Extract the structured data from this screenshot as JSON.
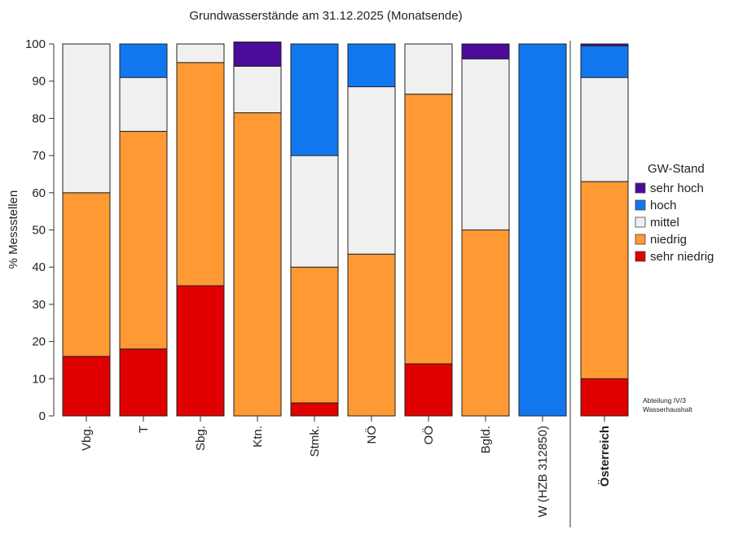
{
  "chart_data": {
    "type": "bar",
    "stacked": true,
    "percent": true,
    "title": "Grundwasserstände am 31.12.2025 (Monatsende)",
    "ylabel": "% Messstellen",
    "xlabel": "",
    "ylim": [
      0,
      100
    ],
    "yticks": [
      0,
      10,
      20,
      30,
      40,
      50,
      60,
      70,
      80,
      90,
      100
    ],
    "grid": false,
    "legend_position": "right",
    "legend_title": "GW-Stand",
    "categories": [
      "Vbg.",
      "T",
      "Sbg.",
      "Ktn.",
      "Stmk.",
      "NÖ",
      "OÖ",
      "Bgld.",
      "W (HZB 312850)",
      "Österreich"
    ],
    "emphasized_category": "Österreich",
    "separator_before": "Österreich",
    "series": [
      {
        "name": "sehr niedrig",
        "color": "#e00000",
        "values": [
          16,
          18,
          35,
          0,
          3.5,
          0,
          14,
          0,
          0,
          10
        ]
      },
      {
        "name": "niedrig",
        "color": "#ff9933",
        "values": [
          44,
          58.5,
          60,
          81.5,
          36.5,
          43.5,
          72.5,
          50,
          0,
          53
        ]
      },
      {
        "name": "mittel",
        "color": "#f0f0f0",
        "values": [
          40,
          14.5,
          5,
          12.5,
          30,
          45,
          13.5,
          46,
          0,
          28
        ]
      },
      {
        "name": "hoch",
        "color": "#1177ee",
        "values": [
          0,
          9,
          0,
          0,
          30,
          11.5,
          0,
          0,
          100,
          8.5
        ]
      },
      {
        "name": "sehr hoch",
        "color": "#4c0b9a",
        "values": [
          0,
          0,
          0,
          6.5,
          0,
          0,
          0,
          4,
          0,
          0.5
        ]
      }
    ]
  },
  "legend_order": [
    "sehr hoch",
    "hoch",
    "mittel",
    "niedrig",
    "sehr niedrig"
  ],
  "credit": {
    "line1": "Abteilung IV/3",
    "line2": "Wasserhaushalt"
  }
}
